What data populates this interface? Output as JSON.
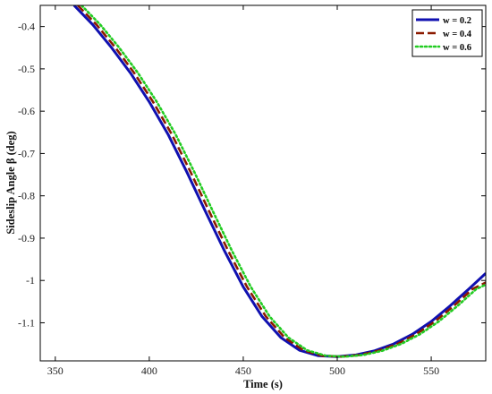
{
  "chart_data": {
    "type": "line",
    "xlabel": "Time (s)",
    "ylabel": "Sideslip Angle β (deg)",
    "xlim": [
      342,
      579
    ],
    "ylim": [
      -1.19,
      -0.35
    ],
    "xticks": [
      350,
      400,
      450,
      500,
      550
    ],
    "yticks": [
      -0.4,
      -0.5,
      -0.6,
      -0.7,
      -0.8,
      -0.9,
      -1,
      -1.1
    ],
    "grid": false,
    "legend_position": "top-right",
    "series": [
      {
        "name": "w = 0.2",
        "color": "#1010b0",
        "style": "solid",
        "x": [
          360,
          370,
          380,
          390,
          400,
          410,
          420,
          430,
          440,
          450,
          460,
          470,
          480,
          490,
          500,
          510,
          520,
          530,
          540,
          550,
          560,
          570,
          579
        ],
        "y": [
          -0.35,
          -0.396,
          -0.45,
          -0.51,
          -0.578,
          -0.655,
          -0.744,
          -0.838,
          -0.93,
          -1.015,
          -1.085,
          -1.135,
          -1.165,
          -1.178,
          -1.18,
          -1.176,
          -1.166,
          -1.15,
          -1.127,
          -1.097,
          -1.06,
          -1.02,
          -0.983
        ]
      },
      {
        "name": "w = 0.4",
        "color": "#8b1a00",
        "style": "dashed",
        "x": [
          362,
          372,
          382,
          392,
          402,
          412,
          422,
          432,
          442,
          452,
          462,
          472,
          482,
          492,
          502,
          512,
          522,
          532,
          542,
          552,
          562,
          572,
          579
        ],
        "y": [
          -0.35,
          -0.396,
          -0.45,
          -0.51,
          -0.578,
          -0.655,
          -0.744,
          -0.838,
          -0.93,
          -1.015,
          -1.085,
          -1.135,
          -1.165,
          -1.178,
          -1.18,
          -1.176,
          -1.166,
          -1.15,
          -1.127,
          -1.097,
          -1.06,
          -1.02,
          -1.005
        ]
      },
      {
        "name": "w = 0.6",
        "color": "#22cc22",
        "style": "dotted",
        "x": [
          364,
          374,
          384,
          394,
          404,
          414,
          424,
          434,
          444,
          454,
          464,
          474,
          484,
          494,
          504,
          514,
          524,
          534,
          544,
          554,
          564,
          574,
          579
        ],
        "y": [
          -0.35,
          -0.396,
          -0.45,
          -0.51,
          -0.578,
          -0.655,
          -0.744,
          -0.838,
          -0.93,
          -1.015,
          -1.085,
          -1.135,
          -1.165,
          -1.178,
          -1.18,
          -1.176,
          -1.166,
          -1.15,
          -1.127,
          -1.097,
          -1.06,
          -1.02,
          -1.01
        ]
      }
    ]
  }
}
